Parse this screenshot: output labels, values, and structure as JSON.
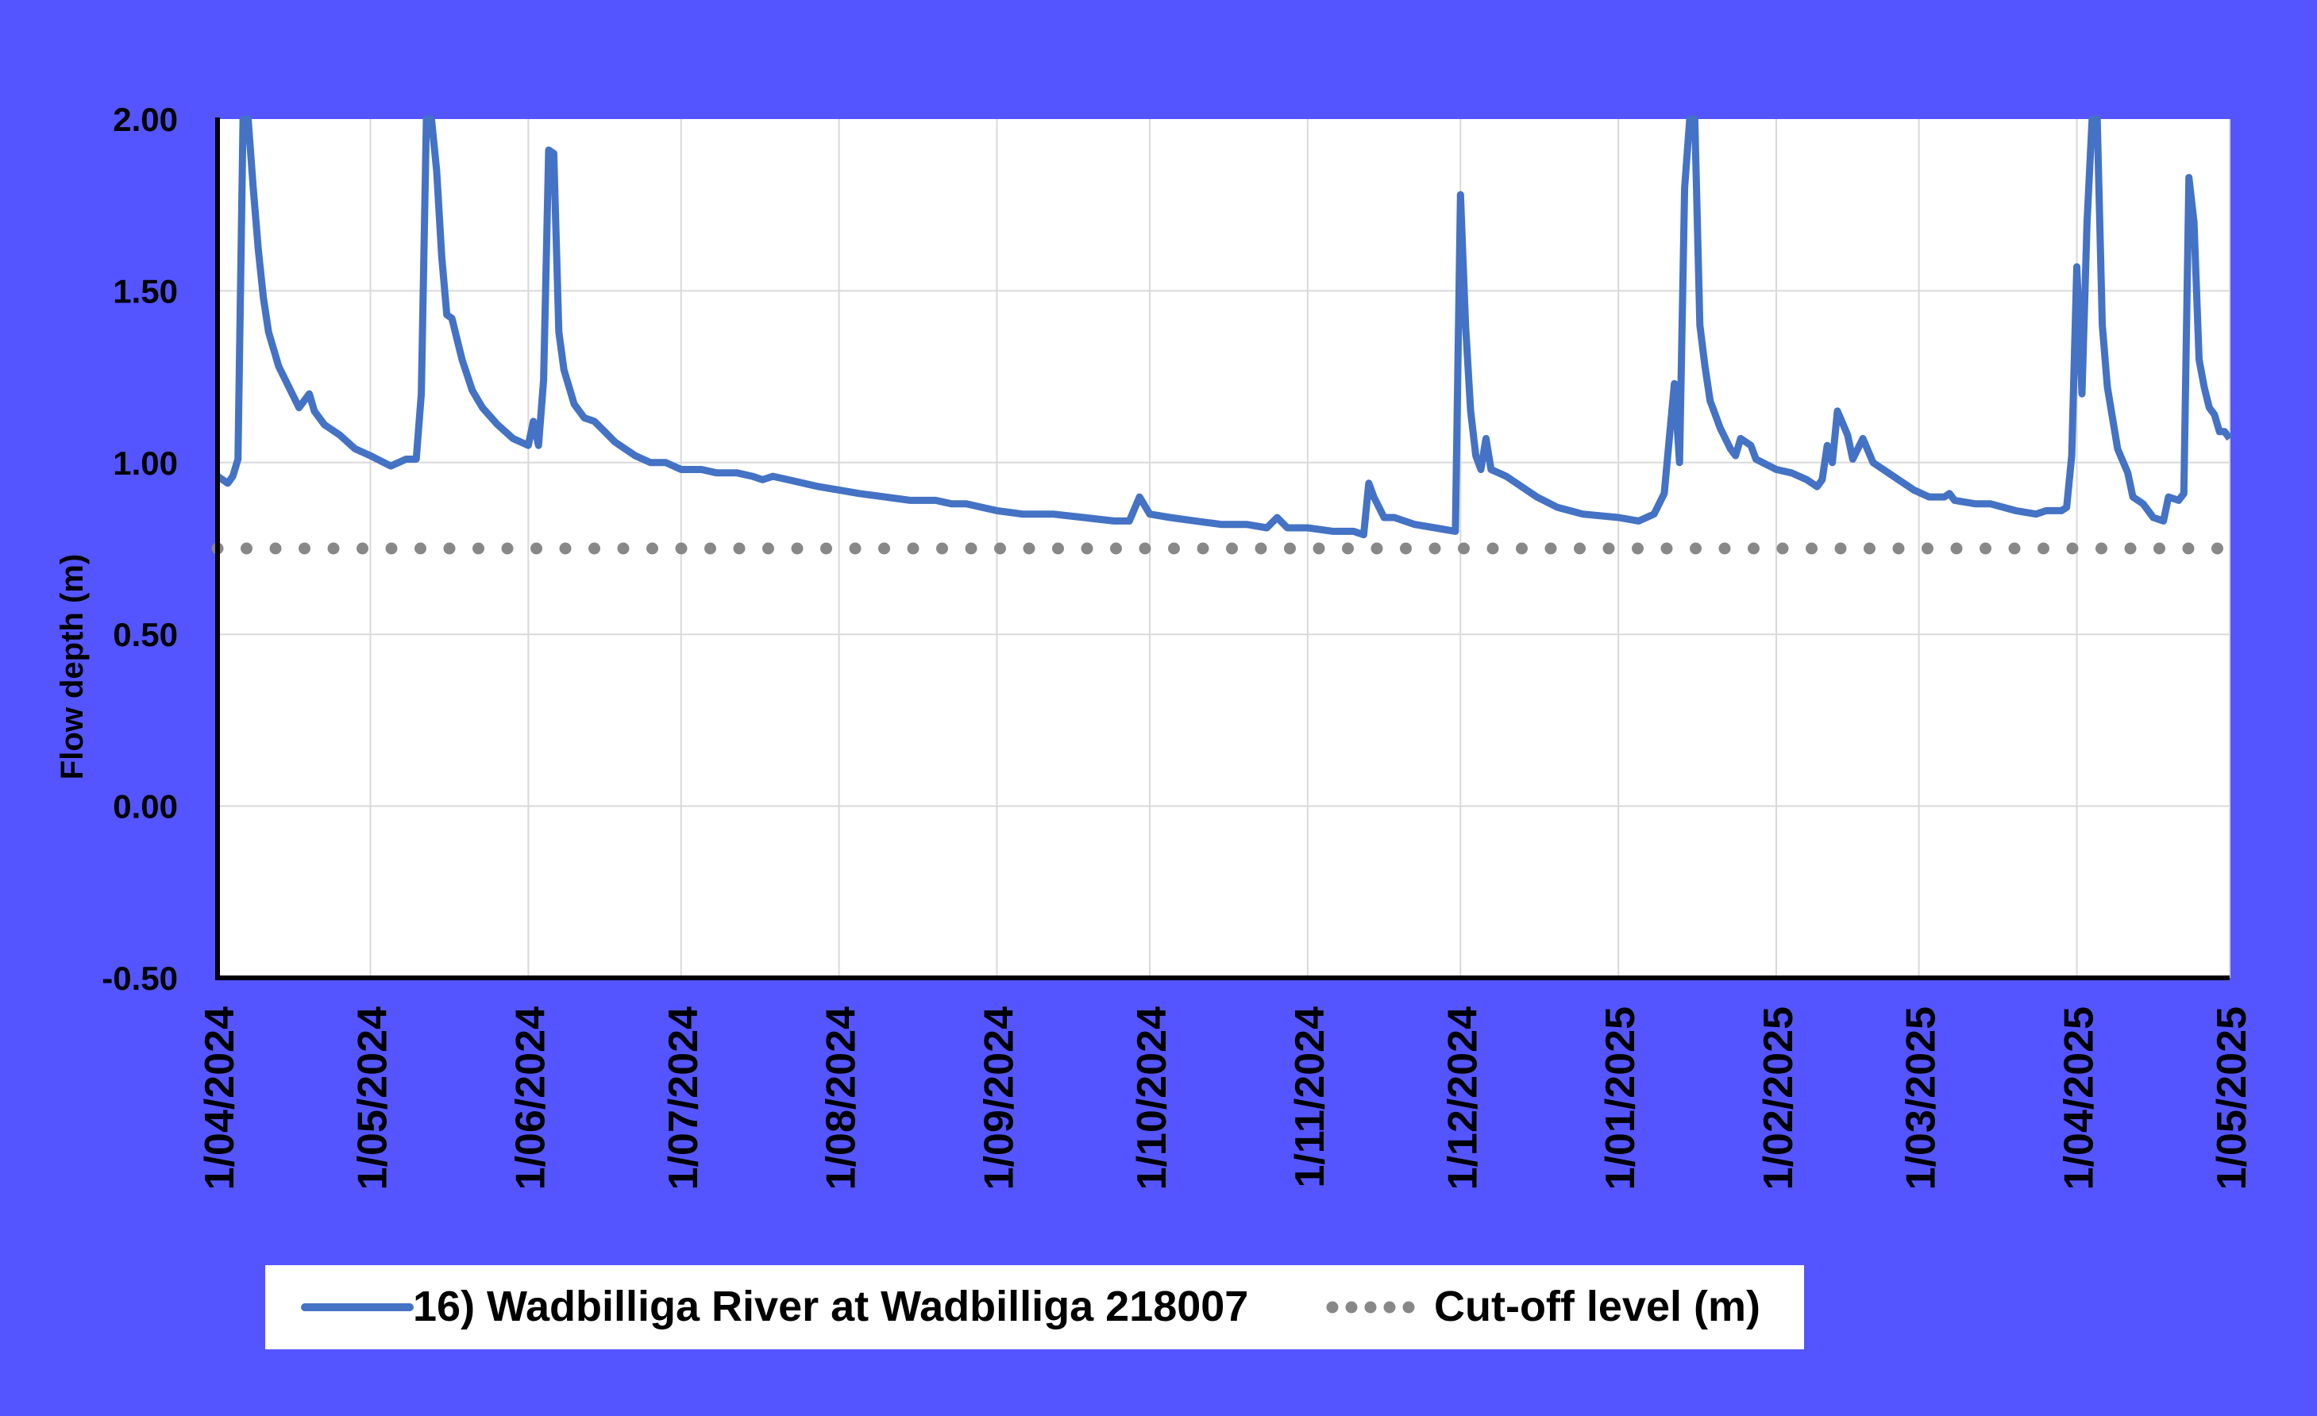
{
  "chart_data": {
    "type": "line",
    "title": "",
    "xlabel": "",
    "ylabel": "Flow depth (m)",
    "ylim": [
      -0.5,
      2.0
    ],
    "xlim": [
      "2024-04-01",
      "2025-05-01"
    ],
    "y_ticks": [
      "2.00",
      "1.50",
      "1.00",
      "0.50",
      "0.00",
      "-0.50"
    ],
    "x_ticks": [
      "1/04/2024",
      "1/05/2024",
      "1/06/2024",
      "1/07/2024",
      "1/08/2024",
      "1/09/2024",
      "1/10/2024",
      "1/11/2024",
      "1/12/2024",
      "1/01/2025",
      "1/02/2025",
      "1/03/2025",
      "1/04/2025",
      "1/05/2025"
    ],
    "grid": true,
    "legend_position": "bottom",
    "series": [
      {
        "name": "16) Wadbilliga River at Wadbilliga 218007",
        "color": "#4472c4",
        "style": "solid",
        "points": [
          [
            "2024-04-01",
            0.96
          ],
          [
            "2024-04-02",
            0.95
          ],
          [
            "2024-04-03",
            0.94
          ],
          [
            "2024-04-04",
            0.96
          ],
          [
            "2024-04-05",
            1.01
          ],
          [
            "2024-04-06",
            2.0
          ],
          [
            "2024-04-07",
            2.0
          ],
          [
            "2024-04-08",
            1.8
          ],
          [
            "2024-04-09",
            1.62
          ],
          [
            "2024-04-10",
            1.48
          ],
          [
            "2024-04-11",
            1.38
          ],
          [
            "2024-04-13",
            1.28
          ],
          [
            "2024-04-15",
            1.22
          ],
          [
            "2024-04-17",
            1.16
          ],
          [
            "2024-04-19",
            1.2
          ],
          [
            "2024-04-20",
            1.15
          ],
          [
            "2024-04-22",
            1.11
          ],
          [
            "2024-04-25",
            1.08
          ],
          [
            "2024-04-28",
            1.04
          ],
          [
            "2024-05-01",
            1.02
          ],
          [
            "2024-05-05",
            0.99
          ],
          [
            "2024-05-08",
            1.01
          ],
          [
            "2024-05-10",
            1.01
          ],
          [
            "2024-05-11",
            1.2
          ],
          [
            "2024-05-12",
            2.0
          ],
          [
            "2024-05-13",
            2.0
          ],
          [
            "2024-05-14",
            1.85
          ],
          [
            "2024-05-15",
            1.6
          ],
          [
            "2024-05-16",
            1.43
          ],
          [
            "2024-05-17",
            1.42
          ],
          [
            "2024-05-19",
            1.3
          ],
          [
            "2024-05-21",
            1.21
          ],
          [
            "2024-05-23",
            1.16
          ],
          [
            "2024-05-26",
            1.11
          ],
          [
            "2024-05-29",
            1.07
          ],
          [
            "2024-06-01",
            1.05
          ],
          [
            "2024-06-02",
            1.12
          ],
          [
            "2024-06-03",
            1.05
          ],
          [
            "2024-06-04",
            1.24
          ],
          [
            "2024-06-05",
            1.91
          ],
          [
            "2024-06-06",
            1.9
          ],
          [
            "2024-06-07",
            1.38
          ],
          [
            "2024-06-08",
            1.27
          ],
          [
            "2024-06-10",
            1.17
          ],
          [
            "2024-06-12",
            1.13
          ],
          [
            "2024-06-14",
            1.12
          ],
          [
            "2024-06-16",
            1.09
          ],
          [
            "2024-06-18",
            1.06
          ],
          [
            "2024-06-20",
            1.04
          ],
          [
            "2024-06-22",
            1.02
          ],
          [
            "2024-06-25",
            1.0
          ],
          [
            "2024-06-28",
            1.0
          ],
          [
            "2024-07-01",
            0.98
          ],
          [
            "2024-07-05",
            0.98
          ],
          [
            "2024-07-08",
            0.97
          ],
          [
            "2024-07-12",
            0.97
          ],
          [
            "2024-07-15",
            0.96
          ],
          [
            "2024-07-17",
            0.95
          ],
          [
            "2024-07-19",
            0.96
          ],
          [
            "2024-07-22",
            0.95
          ],
          [
            "2024-07-25",
            0.94
          ],
          [
            "2024-07-28",
            0.93
          ],
          [
            "2024-08-01",
            0.92
          ],
          [
            "2024-08-05",
            0.91
          ],
          [
            "2024-08-10",
            0.9
          ],
          [
            "2024-08-15",
            0.89
          ],
          [
            "2024-08-20",
            0.89
          ],
          [
            "2024-08-23",
            0.88
          ],
          [
            "2024-08-26",
            0.88
          ],
          [
            "2024-08-29",
            0.87
          ],
          [
            "2024-09-01",
            0.86
          ],
          [
            "2024-09-06",
            0.85
          ],
          [
            "2024-09-12",
            0.85
          ],
          [
            "2024-09-18",
            0.84
          ],
          [
            "2024-09-24",
            0.83
          ],
          [
            "2024-09-27",
            0.83
          ],
          [
            "2024-09-29",
            0.9
          ],
          [
            "2024-10-01",
            0.85
          ],
          [
            "2024-10-05",
            0.84
          ],
          [
            "2024-10-10",
            0.83
          ],
          [
            "2024-10-15",
            0.82
          ],
          [
            "2024-10-20",
            0.82
          ],
          [
            "2024-10-24",
            0.81
          ],
          [
            "2024-10-26",
            0.84
          ],
          [
            "2024-10-28",
            0.81
          ],
          [
            "2024-11-01",
            0.81
          ],
          [
            "2024-11-06",
            0.8
          ],
          [
            "2024-11-10",
            0.8
          ],
          [
            "2024-11-12",
            0.79
          ],
          [
            "2024-11-13",
            0.94
          ],
          [
            "2024-11-14",
            0.9
          ],
          [
            "2024-11-16",
            0.84
          ],
          [
            "2024-11-18",
            0.84
          ],
          [
            "2024-11-22",
            0.82
          ],
          [
            "2024-11-26",
            0.81
          ],
          [
            "2024-11-30",
            0.8
          ],
          [
            "2024-12-01",
            1.78
          ],
          [
            "2024-12-02",
            1.4
          ],
          [
            "2024-12-03",
            1.15
          ],
          [
            "2024-12-04",
            1.02
          ],
          [
            "2024-12-05",
            0.98
          ],
          [
            "2024-12-06",
            1.07
          ],
          [
            "2024-12-07",
            0.98
          ],
          [
            "2024-12-10",
            0.96
          ],
          [
            "2024-12-13",
            0.93
          ],
          [
            "2024-12-16",
            0.9
          ],
          [
            "2024-12-20",
            0.87
          ],
          [
            "2024-12-25",
            0.85
          ],
          [
            "2025-01-01",
            0.84
          ],
          [
            "2025-01-05",
            0.83
          ],
          [
            "2025-01-08",
            0.85
          ],
          [
            "2025-01-10",
            0.91
          ],
          [
            "2025-01-12",
            1.23
          ],
          [
            "2025-01-13",
            1.0
          ],
          [
            "2025-01-14",
            1.8
          ],
          [
            "2025-01-15",
            2.0
          ],
          [
            "2025-01-16",
            2.0
          ],
          [
            "2025-01-17",
            1.4
          ],
          [
            "2025-01-18",
            1.28
          ],
          [
            "2025-01-19",
            1.18
          ],
          [
            "2025-01-21",
            1.1
          ],
          [
            "2025-01-23",
            1.04
          ],
          [
            "2025-01-24",
            1.02
          ],
          [
            "2025-01-25",
            1.07
          ],
          [
            "2025-01-27",
            1.05
          ],
          [
            "2025-01-28",
            1.01
          ],
          [
            "2025-02-01",
            0.98
          ],
          [
            "2025-02-04",
            0.97
          ],
          [
            "2025-02-07",
            0.95
          ],
          [
            "2025-02-09",
            0.93
          ],
          [
            "2025-02-10",
            0.95
          ],
          [
            "2025-02-11",
            1.05
          ],
          [
            "2025-02-12",
            1.0
          ],
          [
            "2025-02-13",
            1.15
          ],
          [
            "2025-02-15",
            1.08
          ],
          [
            "2025-02-16",
            1.01
          ],
          [
            "2025-02-18",
            1.07
          ],
          [
            "2025-02-20",
            1.0
          ],
          [
            "2025-02-24",
            0.96
          ],
          [
            "2025-02-28",
            0.92
          ],
          [
            "2025-03-03",
            0.9
          ],
          [
            "2025-03-06",
            0.9
          ],
          [
            "2025-03-07",
            0.91
          ],
          [
            "2025-03-08",
            0.89
          ],
          [
            "2025-03-12",
            0.88
          ],
          [
            "2025-03-15",
            0.88
          ],
          [
            "2025-03-20",
            0.86
          ],
          [
            "2025-03-24",
            0.85
          ],
          [
            "2025-03-26",
            0.86
          ],
          [
            "2025-03-29",
            0.86
          ],
          [
            "2025-03-30",
            0.87
          ],
          [
            "2025-03-31",
            1.02
          ],
          [
            "2025-04-01",
            1.57
          ],
          [
            "2025-04-02",
            1.2
          ],
          [
            "2025-04-03",
            1.7
          ],
          [
            "2025-04-04",
            2.0
          ],
          [
            "2025-04-05",
            2.0
          ],
          [
            "2025-04-06",
            1.4
          ],
          [
            "2025-04-07",
            1.22
          ],
          [
            "2025-04-09",
            1.04
          ],
          [
            "2025-04-11",
            0.97
          ],
          [
            "2025-04-12",
            0.9
          ],
          [
            "2025-04-14",
            0.88
          ],
          [
            "2025-04-16",
            0.84
          ],
          [
            "2025-04-18",
            0.83
          ],
          [
            "2025-04-19",
            0.9
          ],
          [
            "2025-04-21",
            0.89
          ],
          [
            "2025-04-22",
            0.91
          ],
          [
            "2025-04-23",
            1.83
          ],
          [
            "2025-04-24",
            1.7
          ],
          [
            "2025-04-25",
            1.3
          ],
          [
            "2025-04-26",
            1.22
          ],
          [
            "2025-04-27",
            1.16
          ],
          [
            "2025-04-28",
            1.14
          ],
          [
            "2025-04-29",
            1.09
          ],
          [
            "2025-04-30",
            1.09
          ],
          [
            "2025-05-01",
            1.07
          ]
        ]
      },
      {
        "name": "Cut-off level (m)",
        "color": "#888888",
        "style": "dotted",
        "points": [
          [
            "2024-04-01",
            0.75
          ],
          [
            "2025-05-01",
            0.75
          ]
        ]
      }
    ]
  },
  "colors": {
    "background": "#5555ff",
    "plot_background": "#ffffff",
    "gridline": "#d9d9d9",
    "axis": "#000000"
  }
}
